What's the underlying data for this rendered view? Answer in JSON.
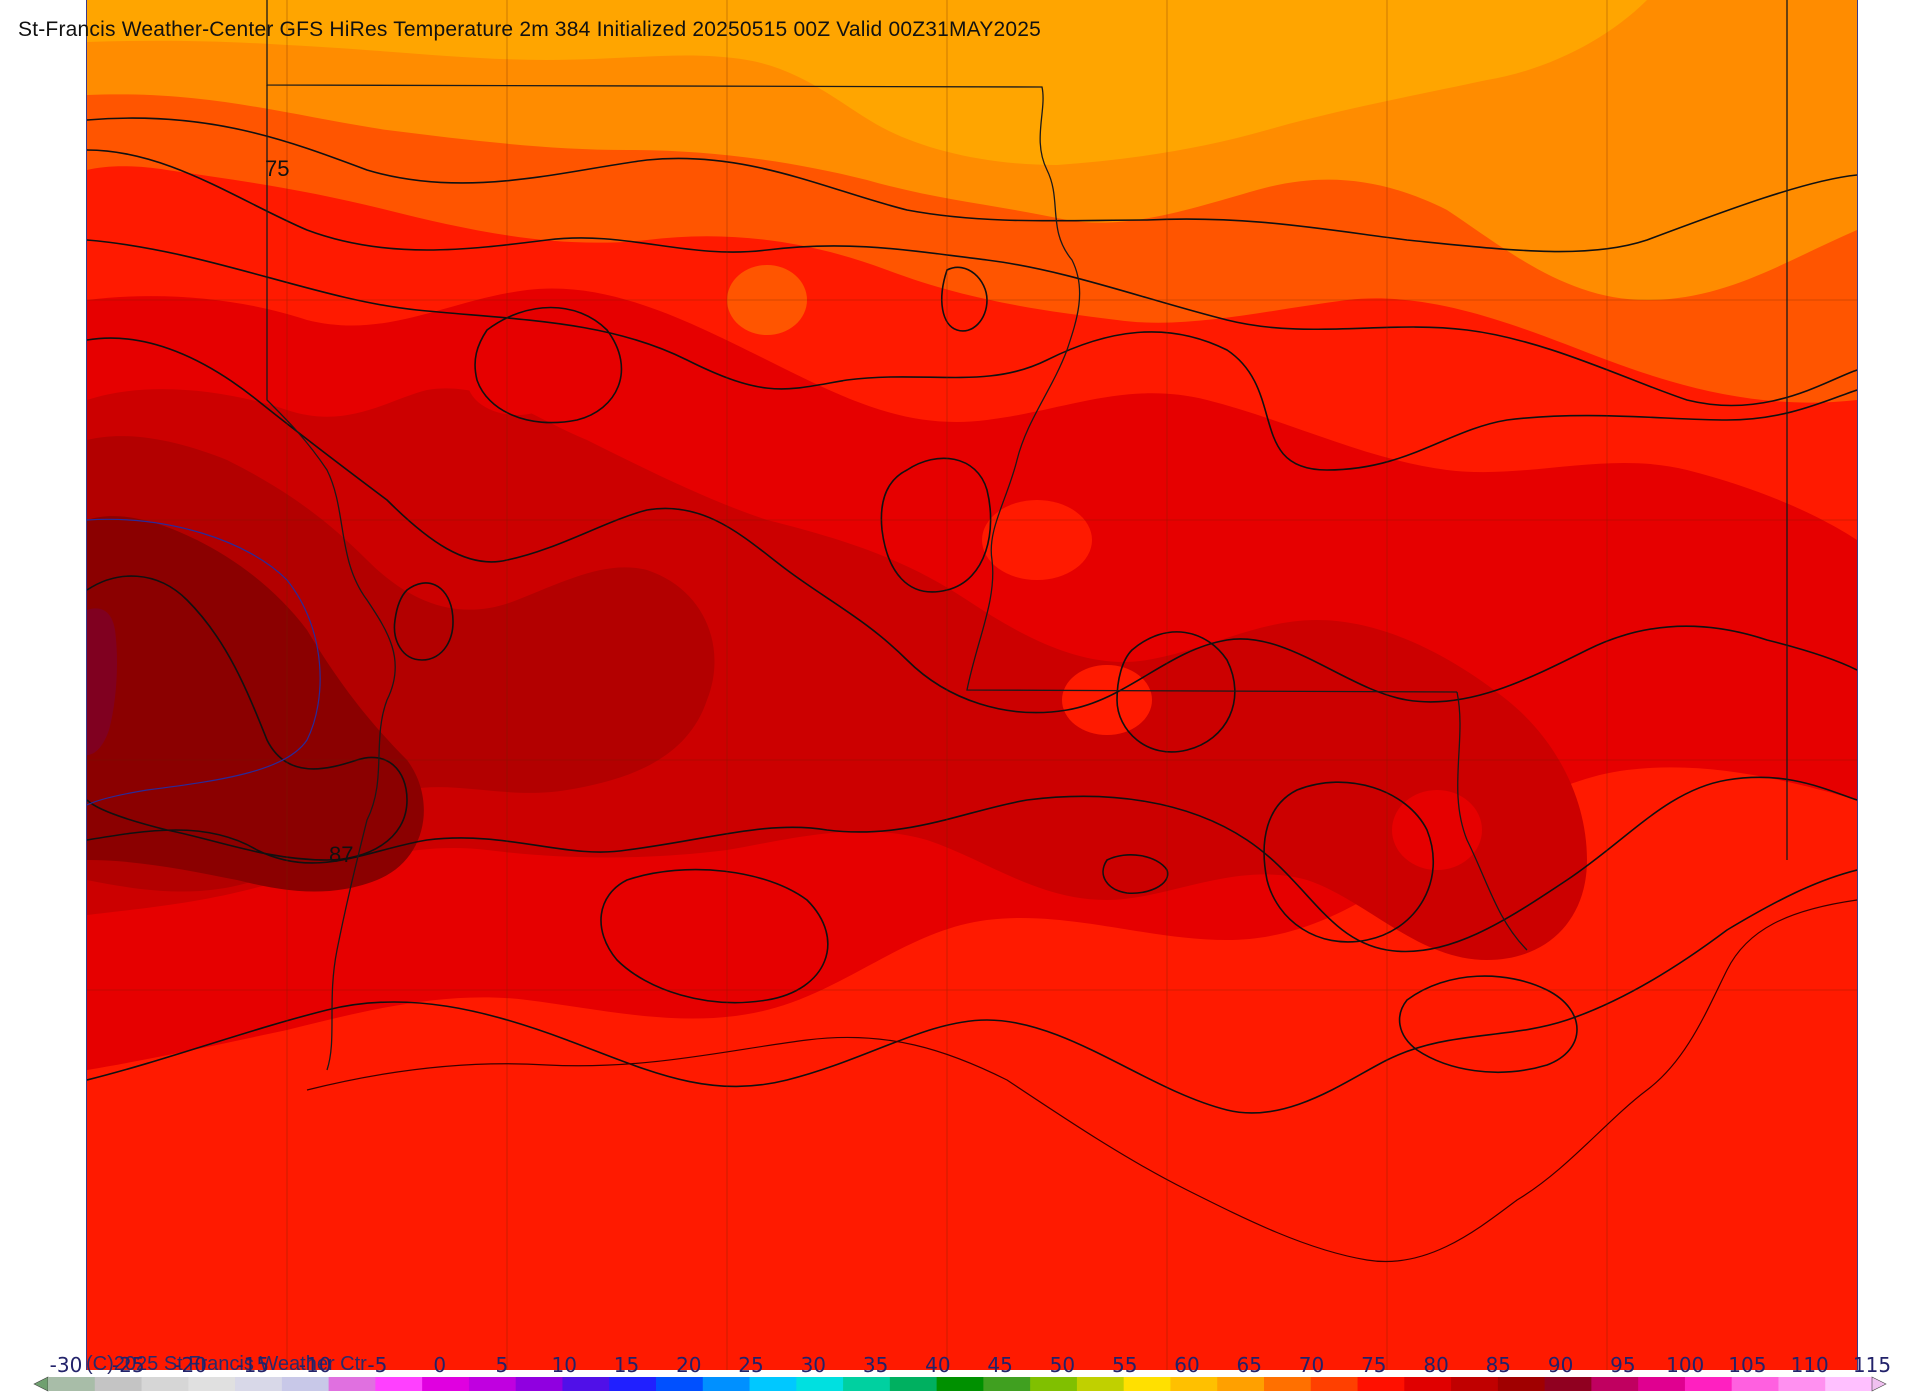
{
  "title": "St-Francis Weather-Center GFS HiRes Temperature 2m  384 Initialized 20250515 00Z Valid 00Z31MAY2025",
  "copyright": "(C)2025 St Francis Weather Ctr",
  "contour_labels": [
    "75",
    "87"
  ],
  "colorbar": {
    "ticks": [
      "-30",
      "-25",
      "-20",
      "-15",
      "-10",
      "-5",
      "0",
      "5",
      "10",
      "15",
      "20",
      "25",
      "30",
      "35",
      "40",
      "45",
      "50",
      "55",
      "60",
      "65",
      "70",
      "75",
      "80",
      "85",
      "90",
      "95",
      "100",
      "105",
      "110",
      "115"
    ],
    "colors": [
      "#a8bda8",
      "#c4c4c4",
      "#d6d6d6",
      "#e0e0e0",
      "#d8d8e8",
      "#c8c8e8",
      "#e070e0",
      "#ff40ff",
      "#e000e0",
      "#c000e0",
      "#9000e0",
      "#5010e8",
      "#2020ff",
      "#0050ff",
      "#0090ff",
      "#00c8ff",
      "#00e0e0",
      "#00d0a0",
      "#00b060",
      "#009000",
      "#40a020",
      "#80c000",
      "#c0d000",
      "#ffe000",
      "#ffc000",
      "#ffa000",
      "#ff7000",
      "#ff4000",
      "#ff1000",
      "#e00000",
      "#c00000",
      "#a00000",
      "#900020",
      "#c00060",
      "#e00090",
      "#ff20c0",
      "#ff60e0",
      "#ff90f0",
      "#ffc0ff"
    ],
    "left_arrow_color": "#70a070",
    "right_arrow_color": "#f0c0f0"
  },
  "temperature_fill_colors": {
    "t70": "#ffa500",
    "t72": "#ff8c00",
    "t75": "#ff5500",
    "t78": "#ff1a00",
    "t82": "#e60000",
    "t85": "#cc0000",
    "t88": "#b30000",
    "t91": "#8b0000",
    "t94": "#800020"
  }
}
